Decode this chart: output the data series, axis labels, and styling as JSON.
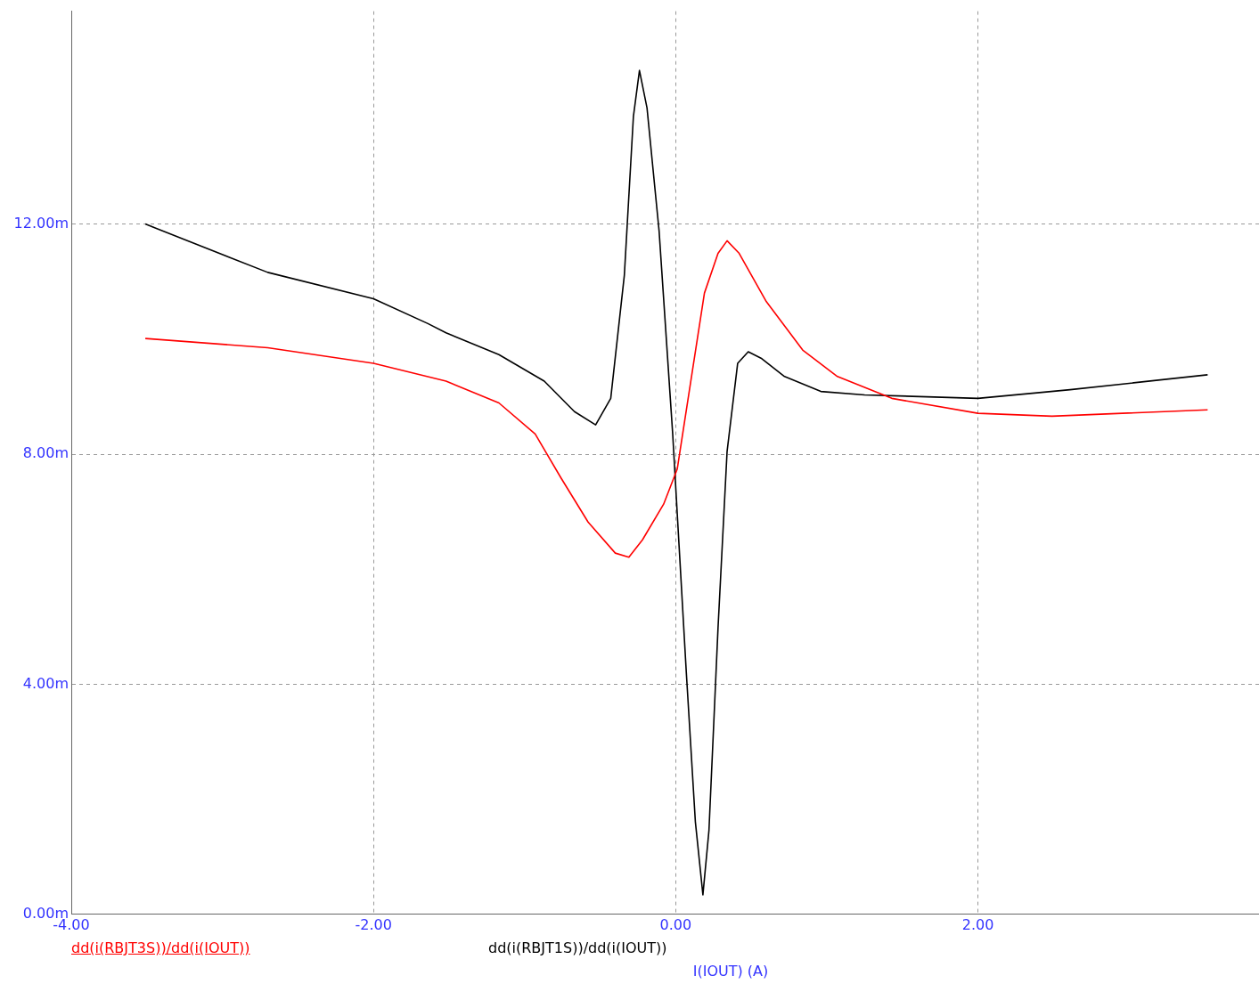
{
  "chart_data": {
    "type": "line",
    "xlabel": "I(IOUT) (A)",
    "legend": "bottom",
    "grid": true,
    "marker": "none",
    "line_style": "solid",
    "xlim": [
      -4,
      3.86
    ],
    "xticks": [
      {
        "value": -4,
        "label": "-4.00"
      },
      {
        "value": -2,
        "label": "-2.00"
      },
      {
        "value": 0,
        "label": "0.00"
      },
      {
        "value": 2,
        "label": "2.00"
      }
    ],
    "ylim": [
      0,
      15.7
    ],
    "yticks": [
      {
        "value": 0,
        "label": "0.00m"
      },
      {
        "value": 4,
        "label": "4.00m"
      },
      {
        "value": 8,
        "label": "8.00m"
      },
      {
        "value": 12,
        "label": "12.00m"
      }
    ],
    "series": [
      {
        "name": "dd(i(RBJT3S))/dd(i(IOUT))",
        "color": "#ff0000",
        "x": [
          -3.51,
          -2.7,
          -2.0,
          -1.52,
          -1.17,
          -0.93,
          -0.76,
          -0.58,
          -0.4,
          -0.31,
          -0.22,
          -0.08,
          0.01,
          0.1,
          0.19,
          0.28,
          0.34,
          0.42,
          0.6,
          0.84,
          1.07,
          1.43,
          2.0,
          2.49,
          3.52
        ],
        "values": [
          10.01,
          9.85,
          9.58,
          9.27,
          8.89,
          8.35,
          7.59,
          6.82,
          6.28,
          6.21,
          6.51,
          7.13,
          7.74,
          9.27,
          10.8,
          11.49,
          11.71,
          11.49,
          10.65,
          9.81,
          9.35,
          8.97,
          8.71,
          8.66,
          8.77
        ]
      },
      {
        "name": "dd(i(RBJT1S))/dd(i(IOUT))",
        "color": "#000000",
        "x": [
          -3.51,
          -2.7,
          -2.0,
          -1.64,
          -1.52,
          -1.17,
          -0.87,
          -0.67,
          -0.53,
          -0.43,
          -0.34,
          -0.28,
          -0.24,
          -0.19,
          -0.11,
          -0.02,
          0.07,
          0.13,
          0.18,
          0.22,
          0.28,
          0.34,
          0.41,
          0.48,
          0.57,
          0.72,
          0.96,
          1.25,
          2.0,
          2.61,
          3.52
        ],
        "values": [
          12.0,
          11.16,
          10.7,
          10.27,
          10.11,
          9.73,
          9.27,
          8.74,
          8.51,
          8.97,
          11.11,
          13.87,
          14.67,
          14.02,
          11.88,
          8.35,
          4.21,
          1.61,
          0.34,
          1.46,
          4.98,
          8.05,
          9.58,
          9.78,
          9.66,
          9.35,
          9.09,
          9.03,
          8.97,
          9.12,
          9.38
        ]
      }
    ]
  }
}
